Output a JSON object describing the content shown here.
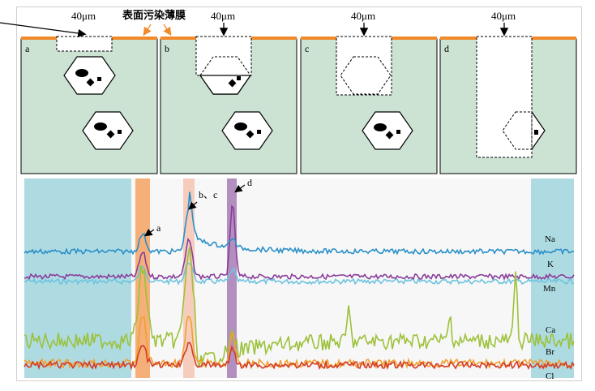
{
  "title_label": "表面污染薄膜",
  "probe_label": "40μm",
  "panels": [
    {
      "letter": "a"
    },
    {
      "letter": "b"
    },
    {
      "letter": "c"
    },
    {
      "letter": "d"
    }
  ],
  "peak_labels": {
    "a": "a",
    "bc": "b、c",
    "d": "d"
  },
  "elements": [
    "Na",
    "K",
    "Mn",
    "Ca",
    "Br",
    "Cl"
  ],
  "colors": {
    "matrix": "#cce3d3",
    "film": "#f08a2a",
    "cyan_band": "#aedbe2",
    "orange_band": "#f5b07a",
    "pink_band": "#f6cdbd",
    "purple_band": "#b38fc0",
    "Na": "#2a8fc8",
    "K": "#8a3d9a",
    "Mn": "#6dc3df",
    "Ca": "#9cc13a",
    "Br": "#f0a030",
    "Cl": "#d23b2a"
  }
}
